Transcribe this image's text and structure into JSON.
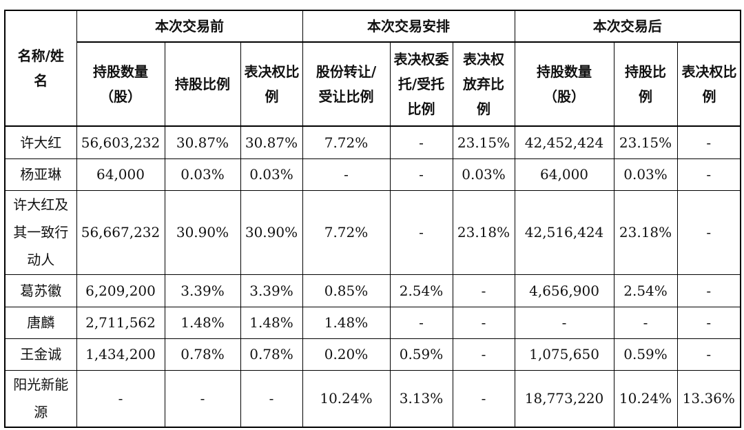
{
  "groups": {
    "name_header": "名称/姓名",
    "before": "本次交易前",
    "arrangement": "本次交易安排",
    "after": "本次交易后"
  },
  "subheaders": {
    "before_shares": "持股数量（股）",
    "before_ratio": "持股比例",
    "before_voting": "表决权比例",
    "transfer_ratio": "股份转让/受让比例",
    "entrust_ratio": "表决权委托/受托比例",
    "waive_ratio": "表决权放弃比例",
    "after_shares": "持股数量（股）",
    "after_ratio": "持股比例",
    "after_voting": "表决权比例"
  },
  "rows": [
    {
      "name": "许大红",
      "before_shares": "56,603,232",
      "before_ratio": "30.87%",
      "before_voting": "30.87%",
      "transfer_ratio": "7.72%",
      "entrust_ratio": "-",
      "waive_ratio": "23.15%",
      "after_shares": "42,452,424",
      "after_ratio": "23.15%",
      "after_voting": "-"
    },
    {
      "name": "杨亚琳",
      "before_shares": "64,000",
      "before_ratio": "0.03%",
      "before_voting": "0.03%",
      "transfer_ratio": "-",
      "entrust_ratio": "-",
      "waive_ratio": "0.03%",
      "after_shares": "64,000",
      "after_ratio": "0.03%",
      "after_voting": "-"
    },
    {
      "name": "许大红及其一致行动人",
      "before_shares": "56,667,232",
      "before_ratio": "30.90%",
      "before_voting": "30.90%",
      "transfer_ratio": "7.72%",
      "entrust_ratio": "-",
      "waive_ratio": "23.18%",
      "after_shares": "42,516,424",
      "after_ratio": "23.18%",
      "after_voting": "-"
    },
    {
      "name": "葛苏徽",
      "before_shares": "6,209,200",
      "before_ratio": "3.39%",
      "before_voting": "3.39%",
      "transfer_ratio": "0.85%",
      "entrust_ratio": "2.54%",
      "waive_ratio": "-",
      "after_shares": "4,656,900",
      "after_ratio": "2.54%",
      "after_voting": "-"
    },
    {
      "name": "唐麟",
      "before_shares": "2,711,562",
      "before_ratio": "1.48%",
      "before_voting": "1.48%",
      "transfer_ratio": "1.48%",
      "entrust_ratio": "-",
      "waive_ratio": "-",
      "after_shares": "-",
      "after_ratio": "-",
      "after_voting": "-"
    },
    {
      "name": "王金诚",
      "before_shares": "1,434,200",
      "before_ratio": "0.78%",
      "before_voting": "0.78%",
      "transfer_ratio": "0.20%",
      "entrust_ratio": "0.59%",
      "waive_ratio": "-",
      "after_shares": "1,075,650",
      "after_ratio": "0.59%",
      "after_voting": "-"
    },
    {
      "name": "阳光新能源",
      "before_shares": "-",
      "before_ratio": "-",
      "before_voting": "-",
      "transfer_ratio": "10.24%",
      "entrust_ratio": "3.13%",
      "waive_ratio": "-",
      "after_shares": "18,773,220",
      "after_ratio": "10.24%",
      "after_voting": "13.36%"
    }
  ]
}
